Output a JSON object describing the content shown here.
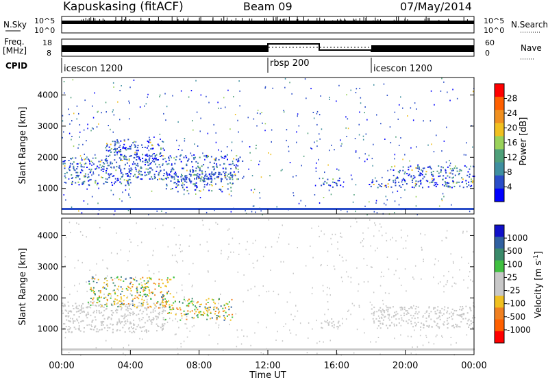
{
  "header": {
    "station": "Kapuskasing (fitACF)",
    "beam": "Beam 09",
    "date": "07/May/2014"
  },
  "top_panels": {
    "nsky_label": "N.Sky",
    "nsky_ticks": [
      "10^5",
      "10^0"
    ],
    "nsearch_label": "N.Search",
    "freq_label": "Freq.",
    "freq_unit": "[MHz]",
    "freq_ticks": [
      "18",
      "8"
    ],
    "nave_label": "Nave",
    "nave_ticks": [
      "60",
      "0"
    ],
    "cpid_label": "CPID",
    "cpid_segments": [
      {
        "label": "icescon 1200",
        "start_hour": 0,
        "end_hour": 12
      },
      {
        "label": "rbsp 200",
        "start_hour": 12,
        "end_hour": 18
      },
      {
        "label": "icescon 1200",
        "start_hour": 18,
        "end_hour": 24
      }
    ]
  },
  "colors": {
    "power_scale": [
      "#0000ff",
      "#2a4dc8",
      "#3f8fa0",
      "#4fa07a",
      "#9ad25a",
      "#f0c020",
      "#f09020",
      "#ff6000",
      "#ff0000"
    ],
    "velocity_scale": [
      "#1010c8",
      "#3060a0",
      "#3a8a6a",
      "#40c040",
      "#c8c8c8",
      "#c8c8c8",
      "#f0c020",
      "#f08020",
      "#ff6000",
      "#ff0000"
    ],
    "ground_scatter": "#c8c8c8"
  },
  "chart_data": [
    {
      "type": "heatmap",
      "panel": "power",
      "ylabel": "Slant Range [km]",
      "ylim": [
        180,
        4560
      ],
      "yticks": [
        1000,
        2000,
        3000,
        4000
      ],
      "xlim": [
        0,
        24
      ],
      "colorbar_label": "Power [dB]",
      "colorbar_ticks": [
        "4",
        "8",
        "12",
        "16",
        "20",
        "24",
        "28"
      ],
      "echo_bands": [
        {
          "t0": 0.0,
          "t1": 4.0,
          "r0": 1100,
          "r1": 2000
        },
        {
          "t0": 2.5,
          "t1": 6.0,
          "r0": 1900,
          "r1": 2600
        },
        {
          "t0": 4.0,
          "t1": 10.5,
          "r0": 1300,
          "r1": 2100
        },
        {
          "t0": 6.0,
          "t1": 10.0,
          "r0": 900,
          "r1": 1500
        },
        {
          "t0": 15.0,
          "t1": 16.2,
          "r0": 1050,
          "r1": 1350
        },
        {
          "t0": 17.8,
          "t1": 19.0,
          "r0": 1050,
          "r1": 1300
        },
        {
          "t0": 19.0,
          "t1": 24.0,
          "r0": 1050,
          "r1": 1750
        }
      ],
      "data_gaps_hours": [
        [
          12.0,
          15.0
        ],
        [
          16.2,
          17.8
        ]
      ]
    },
    {
      "type": "heatmap",
      "panel": "velocity",
      "ylabel": "Slant Range [km]",
      "ylim": [
        180,
        4560
      ],
      "yticks": [
        1000,
        2000,
        3000,
        4000
      ],
      "xlim": [
        0,
        24
      ],
      "xlabel": "Time UT",
      "xticks": [
        "00:00",
        "04:00",
        "08:00",
        "12:00",
        "16:00",
        "20:00",
        "00:00"
      ],
      "colorbar_label": "Velocity [m s^-1]",
      "colorbar_ticks": [
        "1000",
        "500",
        "100",
        "25",
        "-25",
        "-100",
        "-500",
        "-1000"
      ],
      "ground_scatter_bands": [
        {
          "t0": 0.0,
          "t1": 6.0,
          "r0": 900,
          "r1": 1900
        },
        {
          "t0": 15.0,
          "t1": 16.2,
          "r0": 1050,
          "r1": 1350
        },
        {
          "t0": 18.0,
          "t1": 24.0,
          "r0": 1050,
          "r1": 1750
        }
      ],
      "ionospheric_bands": [
        {
          "t0": 1.5,
          "t1": 6.5,
          "r0": 1700,
          "r1": 2700
        },
        {
          "t0": 6.0,
          "t1": 10.0,
          "r0": 1300,
          "r1": 2000
        }
      ]
    }
  ]
}
